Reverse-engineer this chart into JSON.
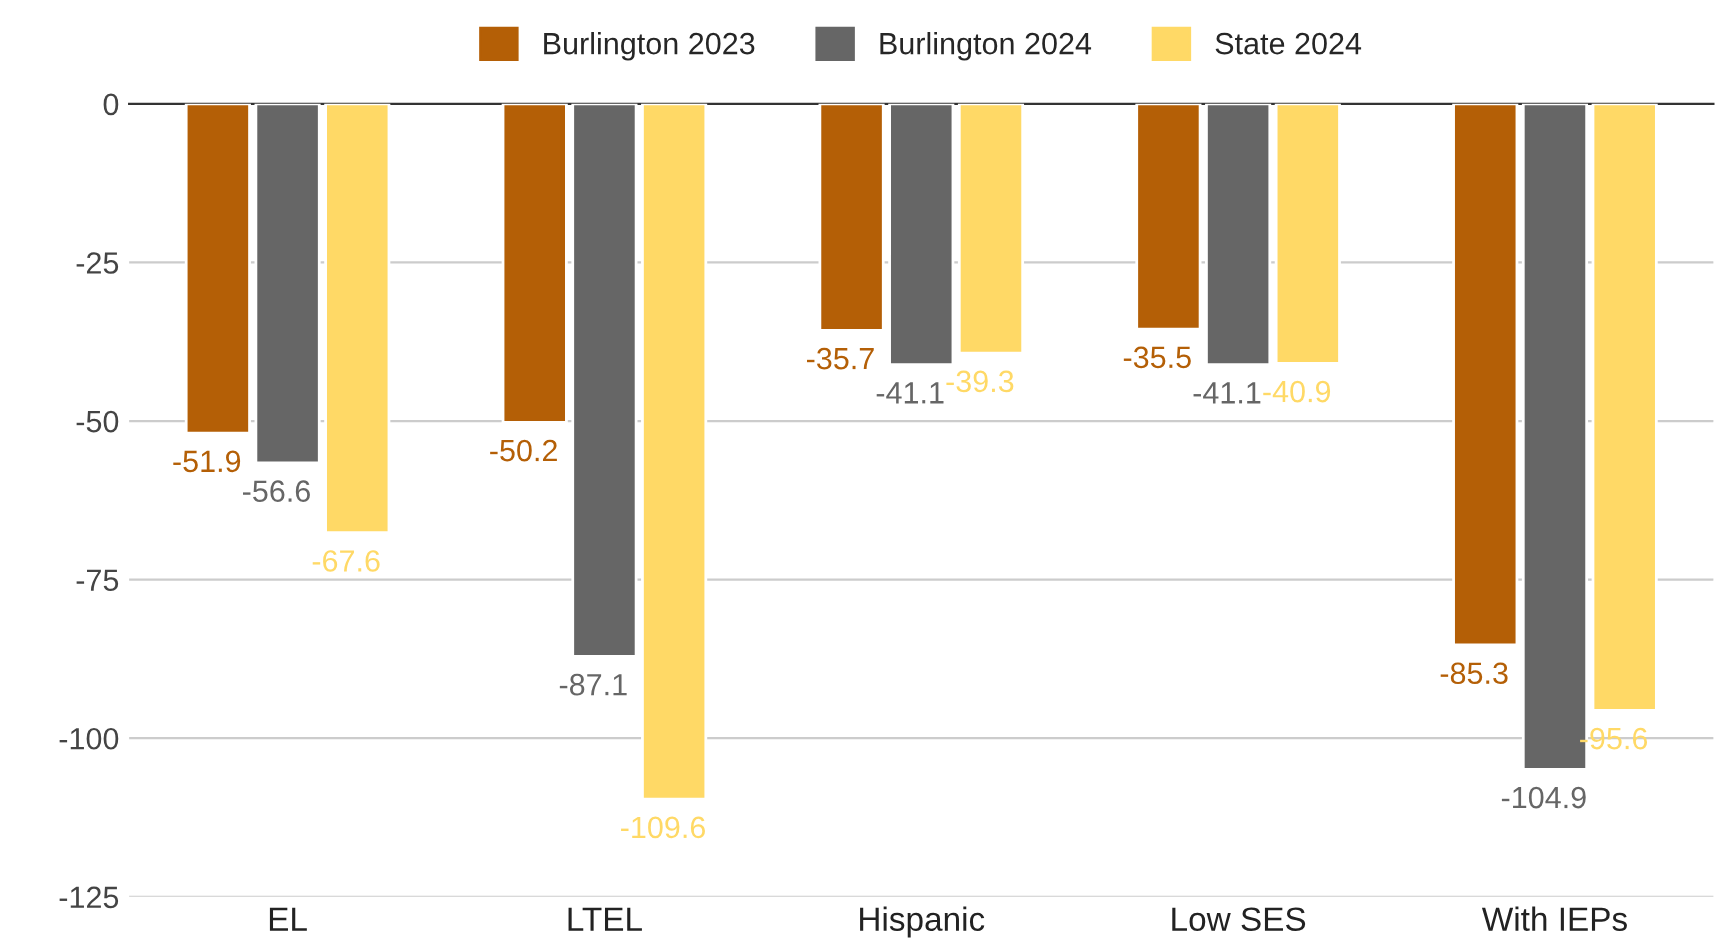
{
  "chart_data": {
    "type": "bar",
    "categories": [
      "EL",
      "LTEL",
      "Hispanic",
      "Low SES",
      "With IEPs"
    ],
    "series": [
      {
        "name": "Burlington 2023",
        "color": "#b45f06",
        "values": [
          -51.9,
          -50.2,
          -35.7,
          -35.5,
          -85.3
        ]
      },
      {
        "name": "Burlington 2024",
        "color": "#666666",
        "values": [
          -56.6,
          -87.1,
          -41.1,
          -41.1,
          -104.9
        ]
      },
      {
        "name": "State 2024",
        "color": "#ffd966",
        "values": [
          -67.6,
          -109.6,
          -39.3,
          -40.9,
          -95.6
        ]
      }
    ],
    "ylim": [
      -125,
      0
    ],
    "yticks": [
      0,
      -25,
      -50,
      -75,
      -100,
      -125
    ],
    "grid": "y",
    "legend": "top",
    "data_labels": true
  }
}
